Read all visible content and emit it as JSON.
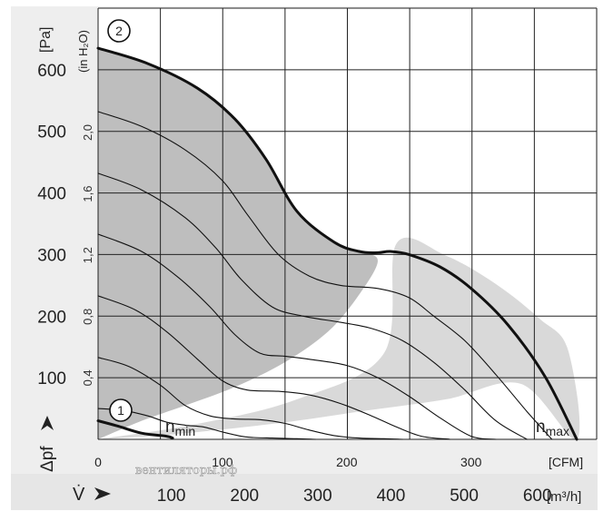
{
  "chart_data": {
    "type": "line",
    "title": "",
    "x_axis_m3h": {
      "label": "V̇",
      "unit": "[m³/h]",
      "ticks": [
        "100",
        "200",
        "300",
        "400",
        "500",
        "600"
      ],
      "range": [
        0,
        681
      ]
    },
    "x_axis_cfm": {
      "unit": "[CFM]",
      "ticks": [
        "0",
        "100",
        "200",
        "300"
      ],
      "range": [
        0,
        401
      ]
    },
    "y_axis_pa": {
      "label": "Δpf",
      "unit": "[Pa]",
      "ticks": [
        "100",
        "200",
        "300",
        "400",
        "500",
        "600"
      ],
      "range": [
        0,
        700
      ]
    },
    "y_axis_inh2o": {
      "unit": "(in H₂O)",
      "ticks": [
        "0,4",
        "0,8",
        "1,2",
        "1,6",
        "2,0"
      ]
    },
    "grid": true,
    "annotations": {
      "curve_max_marker": "2",
      "curve_min_marker": "1",
      "n_min": {
        "base": "n",
        "sub": "min"
      },
      "n_max": {
        "base": "n",
        "sub": "max"
      },
      "watermark": "вентиляторы.рф"
    },
    "series": [
      {
        "role": "max-speed",
        "style": "bold",
        "cfm": [
          0,
          40,
          80,
          110,
          135,
          160,
          190,
          210,
          225,
          235,
          250,
          275,
          300,
          330,
          360,
          385
        ],
        "pa": [
          635,
          610,
          570,
          520,
          455,
          370,
          320,
          305,
          303,
          305,
          300,
          280,
          245,
          185,
          100,
          0
        ]
      },
      {
        "role": "min-speed",
        "style": "bold",
        "cfm": [
          0,
          15,
          35,
          55,
          60
        ],
        "pa": [
          30,
          22,
          10,
          5,
          2
        ]
      },
      {
        "role": "intermediate",
        "style": "thin",
        "cfm": [
          0,
          35,
          70,
          100,
          120,
          145,
          170,
          195,
          225,
          250,
          270,
          295,
          320,
          345,
          365
        ],
        "pa": [
          532,
          508,
          470,
          420,
          365,
          300,
          265,
          250,
          245,
          230,
          200,
          160,
          105,
          45,
          0
        ]
      },
      {
        "role": "intermediate",
        "style": "thin",
        "cfm": [
          0,
          35,
          70,
          95,
          115,
          140,
          165,
          195,
          220,
          245,
          270,
          295,
          320,
          345
        ],
        "pa": [
          432,
          405,
          360,
          310,
          260,
          215,
          200,
          190,
          180,
          160,
          125,
          80,
          30,
          0
        ]
      },
      {
        "role": "intermediate",
        "style": "thin",
        "cfm": [
          0,
          35,
          65,
          90,
          110,
          130,
          150,
          170,
          200,
          225,
          250,
          275,
          300,
          320
        ],
        "pa": [
          333,
          305,
          262,
          215,
          170,
          140,
          135,
          130,
          120,
          100,
          70,
          35,
          5,
          0
        ]
      },
      {
        "role": "intermediate",
        "style": "thin",
        "cfm": [
          0,
          30,
          55,
          80,
          100,
          120,
          145,
          170,
          195,
          220,
          240,
          260,
          283
        ],
        "pa": [
          233,
          210,
          175,
          130,
          95,
          80,
          78,
          72,
          58,
          38,
          20,
          5,
          0
        ]
      },
      {
        "role": "intermediate",
        "style": "thin",
        "cfm": [
          0,
          25,
          50,
          70,
          90,
          110,
          130,
          150,
          170,
          190,
          210,
          230,
          245
        ],
        "pa": [
          133,
          118,
          88,
          55,
          38,
          33,
          32,
          26,
          15,
          6,
          2,
          1,
          0
        ]
      },
      {
        "role": "intermediate",
        "style": "thin",
        "cfm": [
          0,
          20,
          40,
          55,
          70,
          85,
          100,
          115,
          125,
          140,
          160,
          175
        ],
        "pa": [
          50,
          47,
          38,
          28,
          23,
          20,
          12,
          5,
          3,
          2,
          1,
          0
        ]
      }
    ],
    "shaded_regions": [
      {
        "role": "operating-area",
        "fill": "#bebebe",
        "boundary_cfm": [
          0,
          40,
          80,
          110,
          135,
          160,
          190,
          210,
          225,
          210,
          185,
          150,
          110,
          70,
          35,
          0
        ],
        "boundary_pa": [
          635,
          610,
          570,
          520,
          455,
          370,
          320,
          305,
          290,
          235,
          175,
          125,
          85,
          55,
          30,
          0
        ]
      },
      {
        "role": "recommended-band",
        "fill": "#d9d9d9",
        "boundary_cfm": [
          0,
          80,
          160,
          230,
          240,
          280,
          320,
          355,
          378,
          385,
          340,
          280,
          210,
          140,
          60,
          0
        ],
        "boundary_pa": [
          0,
          25,
          65,
          140,
          318,
          298,
          252,
          196,
          145,
          0,
          90,
          65,
          45,
          25,
          8,
          0
        ]
      }
    ],
    "colors": {
      "page_bg": "#eeeeee",
      "plot_bg": "#ffffff",
      "grid": "#222222",
      "curve": "#111111",
      "band": "#d9d9d9",
      "area": "#bebebe"
    }
  }
}
